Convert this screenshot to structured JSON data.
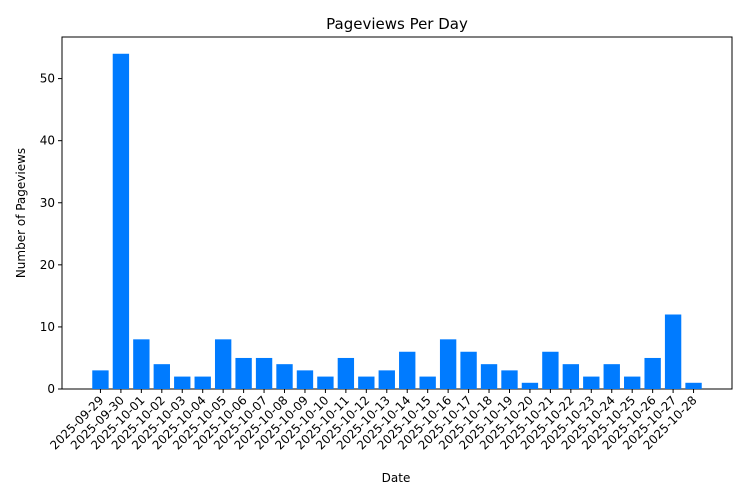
{
  "chart_data": {
    "type": "bar",
    "title": "Pageviews Per Day",
    "x_label": "Date",
    "y_label": "Number of Pageviews",
    "categories": [
      "2025-09-29",
      "2025-09-30",
      "2025-10-01",
      "2025-10-02",
      "2025-10-03",
      "2025-10-04",
      "2025-10-05",
      "2025-10-06",
      "2025-10-07",
      "2025-10-08",
      "2025-10-09",
      "2025-10-10",
      "2025-10-11",
      "2025-10-12",
      "2025-10-13",
      "2025-10-14",
      "2025-10-15",
      "2025-10-16",
      "2025-10-17",
      "2025-10-18",
      "2025-10-19",
      "2025-10-20",
      "2025-10-21",
      "2025-10-22",
      "2025-10-23",
      "2025-10-24",
      "2025-10-25",
      "2025-10-26",
      "2025-10-27",
      "2025-10-28"
    ],
    "values": [
      3,
      54,
      8,
      4,
      2,
      2,
      8,
      5,
      5,
      4,
      3,
      2,
      5,
      2,
      3,
      6,
      2,
      8,
      6,
      4,
      3,
      1,
      6,
      4,
      2,
      4,
      2,
      5,
      12,
      1
    ],
    "color": "#007bff",
    "ylim": [
      0,
      56.7
    ],
    "yticks": [
      0,
      10,
      20,
      30,
      40,
      50
    ],
    "grid": false
  }
}
